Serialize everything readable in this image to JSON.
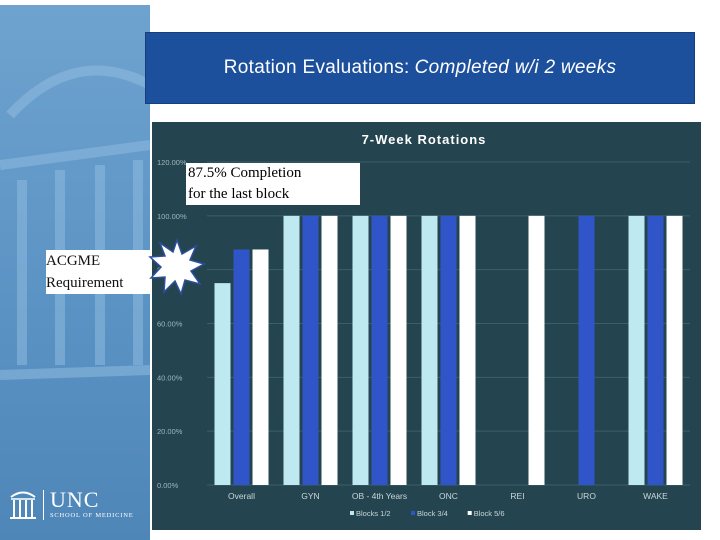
{
  "header": {
    "title_plain": "Rotation Evaluations:",
    "title_italic": "Completed w/i 2 weeks"
  },
  "annotations": {
    "completion_line1": "87.5% Completion",
    "completion_line2": "for the last block",
    "requirement_line1": "ACGME",
    "requirement_line2": "Requirement"
  },
  "logo": {
    "name": "UNC",
    "subtitle": "SCHOOL OF MEDICINE"
  },
  "colors": {
    "chart_bg": "#24454f",
    "series": [
      "#bfe9f0",
      "#2f55c9",
      "#ffffff"
    ],
    "title_bg": "#1c4f9c"
  },
  "chart_data": {
    "type": "bar",
    "title": "7-Week Rotations",
    "categories": [
      "Overall",
      "GYN",
      "OB - 4th Years",
      "ONC",
      "REI",
      "URO",
      "WAKE"
    ],
    "series": [
      {
        "name": "Blocks 1/2",
        "values": [
          75,
          100,
          100,
          100,
          0,
          0,
          100
        ]
      },
      {
        "name": "Block 3/4",
        "values": [
          87.5,
          100,
          100,
          100,
          0,
          100,
          100
        ]
      },
      {
        "name": "Block 5/6",
        "values": [
          87.5,
          100,
          100,
          100,
          100,
          0,
          100
        ]
      }
    ],
    "yticks": [
      "0.00%",
      "20.00%",
      "40.00%",
      "60.00%",
      "80.00%",
      "100.00%",
      "120.00%"
    ],
    "ylim": [
      0,
      120
    ],
    "legend": "bottom"
  }
}
